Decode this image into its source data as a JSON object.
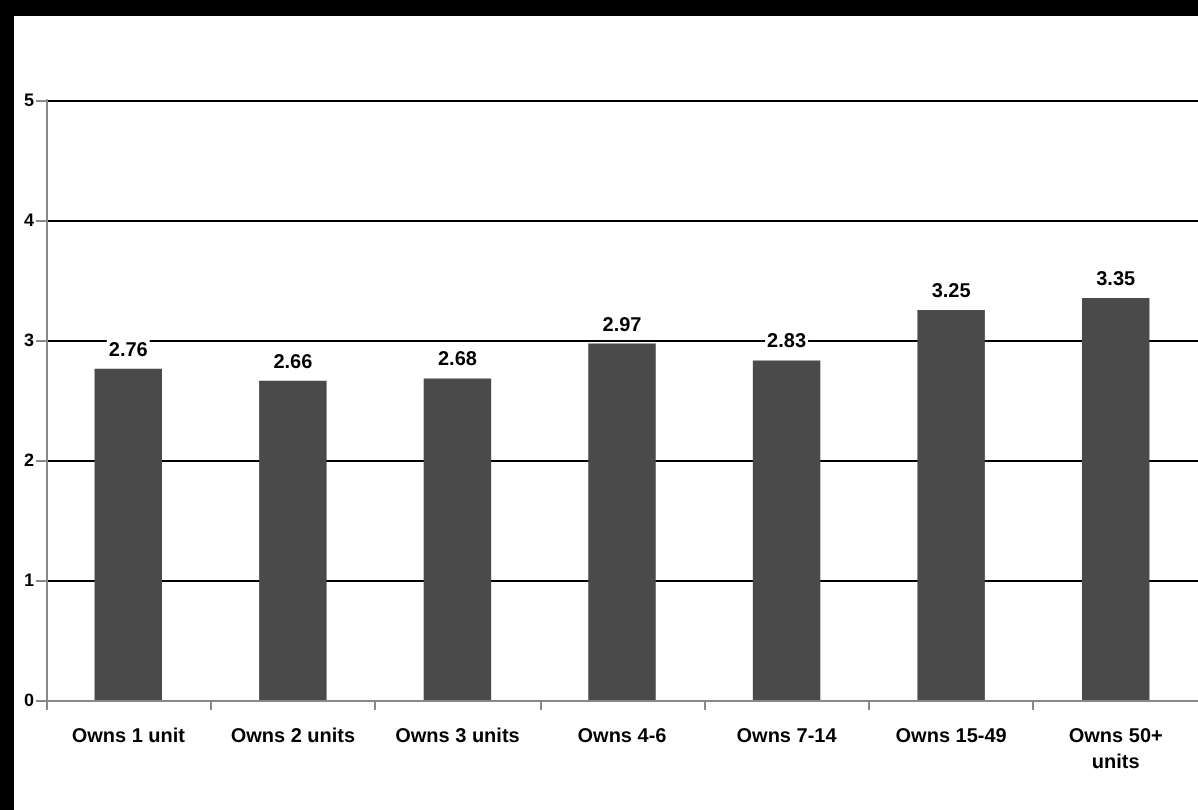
{
  "chart_data": {
    "type": "bar",
    "categories": [
      "Owns 1 unit",
      "Owns 2 units",
      "Owns 3 units",
      "Owns 4-6",
      "Owns 7-14",
      "Owns 15-49",
      "Owns 50+\nunits"
    ],
    "values": [
      2.76,
      2.66,
      2.68,
      2.97,
      2.83,
      3.25,
      3.35
    ],
    "color": "#4a4a4a",
    "ylim": [
      0,
      5
    ],
    "yticks": [
      0,
      1,
      2,
      3,
      4,
      5
    ],
    "grid": "y",
    "data_labels": true
  }
}
